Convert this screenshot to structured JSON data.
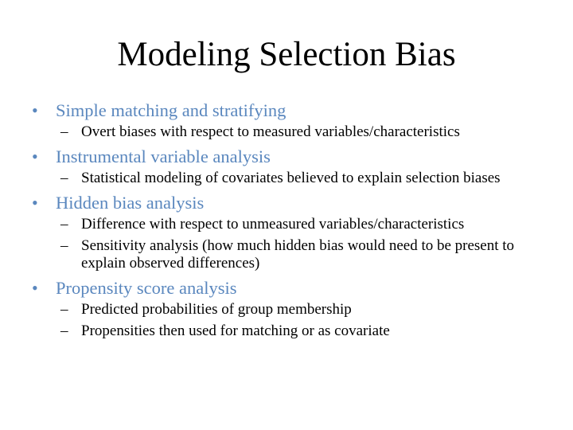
{
  "slide": {
    "title": "Modeling Selection Bias",
    "bullet_glyph": "•",
    "dash_glyph": "–",
    "accent_color": "#5a87be",
    "items": [
      {
        "label": "Simple matching and stratifying",
        "subitems": [
          "Overt biases with respect to measured variables/characteristics"
        ]
      },
      {
        "label": "Instrumental variable analysis",
        "subitems": [
          "Statistical modeling of covariates believed to explain selection biases"
        ]
      },
      {
        "label": "Hidden bias analysis",
        "subitems": [
          "Difference with respect to unmeasured variables/characteristics",
          "Sensitivity analysis (how much hidden bias would need to be present to explain observed differences)"
        ]
      },
      {
        "label": "Propensity score analysis",
        "subitems": [
          "Predicted probabilities of group membership",
          "Propensities then used for matching or as covariate"
        ]
      }
    ]
  }
}
